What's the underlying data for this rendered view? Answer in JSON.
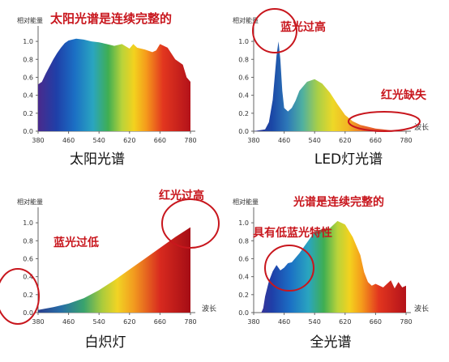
{
  "chart_data": [
    {
      "type": "area",
      "title": "太阳光谱",
      "annotation": "太阳光谱是连续完整的",
      "ylabel": "相对能量",
      "xlabel": "",
      "x_ticks": [
        380,
        460,
        540,
        620,
        660,
        780
      ],
      "y_ticks": [
        "0.0",
        "0.2",
        "0.4",
        "0.6",
        "0.8",
        "1.0"
      ],
      "xlim": [
        380,
        780
      ],
      "ylim": [
        0,
        1.1
      ],
      "fill": "spectrum gradient",
      "x": [
        380,
        390,
        400,
        410,
        420,
        430,
        440,
        450,
        460,
        480,
        500,
        520,
        540,
        560,
        580,
        600,
        620,
        630,
        640,
        660,
        680,
        690,
        700,
        720,
        740,
        760,
        770,
        780
      ],
      "y": [
        0.52,
        0.55,
        0.64,
        0.72,
        0.8,
        0.87,
        0.93,
        0.98,
        1.01,
        1.03,
        1.02,
        1.0,
        0.99,
        0.97,
        0.95,
        0.97,
        0.92,
        0.97,
        0.93,
        0.91,
        0.88,
        0.9,
        0.97,
        0.93,
        0.8,
        0.74,
        0.6,
        0.55
      ]
    },
    {
      "type": "area",
      "title": "LED灯光谱",
      "ylabel": "相对能量",
      "xlabel": "波长",
      "x_ticks": [
        380,
        460,
        540,
        620,
        660,
        780
      ],
      "y_ticks": [
        "0.0",
        "0.2",
        "0.4",
        "0.6",
        "0.8",
        "1.0"
      ],
      "xlim": [
        380,
        780
      ],
      "ylim": [
        0,
        1.1
      ],
      "annotations": [
        "蓝光过高",
        "红光缺失"
      ],
      "x": [
        380,
        410,
        420,
        430,
        435,
        440,
        445,
        450,
        455,
        460,
        470,
        480,
        490,
        500,
        520,
        540,
        560,
        580,
        600,
        620,
        640,
        660,
        680,
        700,
        720,
        740,
        760,
        780
      ],
      "y": [
        0.0,
        0.02,
        0.1,
        0.35,
        0.6,
        0.84,
        1.0,
        0.8,
        0.45,
        0.26,
        0.22,
        0.26,
        0.34,
        0.45,
        0.55,
        0.58,
        0.53,
        0.43,
        0.3,
        0.18,
        0.11,
        0.07,
        0.05,
        0.03,
        0.02,
        0.01,
        0.005,
        0.0
      ]
    },
    {
      "type": "area",
      "title": "白炽灯",
      "ylabel": "相对能量",
      "xlabel": "波长",
      "x_ticks": [
        380,
        460,
        540,
        620,
        660,
        780
      ],
      "y_ticks": [
        "0.0",
        "0.2",
        "0.4",
        "0.6",
        "0.8",
        "1.0"
      ],
      "xlim": [
        380,
        780
      ],
      "ylim": [
        0,
        1.1
      ],
      "annotations": [
        "红光过高",
        "蓝光过低"
      ],
      "x": [
        380,
        420,
        460,
        500,
        540,
        580,
        620,
        660,
        700,
        740,
        780
      ],
      "y": [
        0.03,
        0.06,
        0.1,
        0.16,
        0.25,
        0.36,
        0.48,
        0.6,
        0.72,
        0.84,
        0.95
      ]
    },
    {
      "type": "area",
      "title": "全光谱",
      "annotation": "光谱是连续完整的",
      "ylabel": "相对能量",
      "xlabel": "波长",
      "x_ticks": [
        380,
        460,
        540,
        620,
        660,
        780
      ],
      "y_ticks": [
        "0.0",
        "0.2",
        "0.4",
        "0.6",
        "0.8",
        "1.0"
      ],
      "xlim": [
        380,
        780
      ],
      "ylim": [
        0,
        1.1
      ],
      "annotations": [
        "具有低蓝光特性"
      ],
      "x": [
        380,
        400,
        405,
        410,
        420,
        430,
        440,
        450,
        460,
        470,
        480,
        500,
        520,
        540,
        560,
        580,
        600,
        620,
        640,
        660,
        670,
        680,
        690,
        700,
        720,
        740,
        750,
        760,
        770,
        780
      ],
      "y": [
        0.0,
        0.0,
        0.05,
        0.18,
        0.35,
        0.46,
        0.53,
        0.47,
        0.5,
        0.55,
        0.56,
        0.66,
        0.78,
        0.9,
        0.93,
        0.94,
        1.02,
        0.98,
        0.84,
        0.64,
        0.45,
        0.34,
        0.3,
        0.32,
        0.28,
        0.36,
        0.27,
        0.34,
        0.28,
        0.3
      ]
    }
  ]
}
